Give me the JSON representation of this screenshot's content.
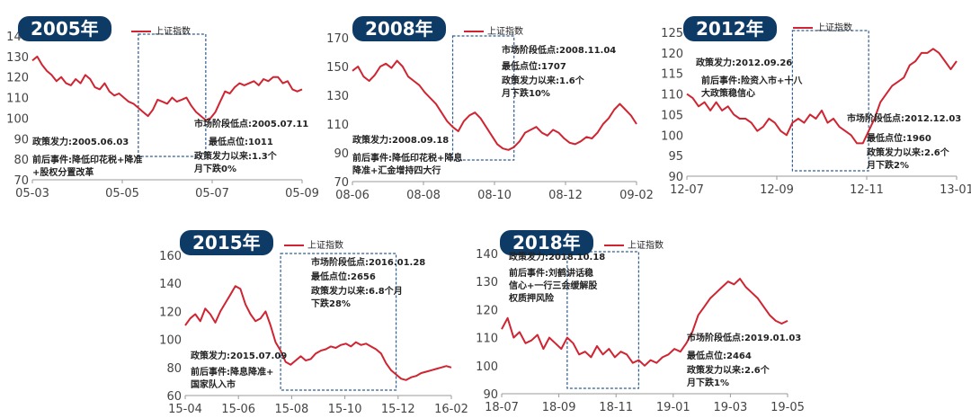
{
  "legend_label": "上证指数",
  "colors": {
    "line": "#cf2431",
    "badge": "#0e3b66",
    "box": "#2f5d93",
    "axis": "#444444"
  },
  "chart_data": [
    {
      "type": "line",
      "badge": "2005年",
      "legend": "上证指数",
      "y_ticks": [
        70,
        80,
        90,
        100,
        110,
        120,
        130,
        140
      ],
      "ylim": [
        70,
        140
      ],
      "x_ticks": [
        "05-03",
        "05-05",
        "05-07",
        "05-09"
      ],
      "series": [
        {
          "values": [
            128,
            130,
            126,
            123,
            121,
            118,
            120,
            117,
            116,
            119,
            117,
            121,
            119,
            115,
            114,
            117,
            113,
            111,
            112,
            110,
            108,
            107,
            105,
            103,
            101,
            104,
            109,
            108,
            107,
            110,
            108,
            109,
            110,
            106,
            103,
            101,
            99,
            100,
            103,
            108,
            113,
            112,
            115,
            117,
            116,
            117,
            118,
            116,
            119,
            118,
            120,
            120,
            117,
            118,
            114,
            113,
            114
          ]
        }
      ],
      "policy_window": [
        22,
        36
      ],
      "annotations": [
        {
          "text": "政策发力:2005.06.03"
        },
        {
          "text": "前后事件:降低印花税+降准\n+股权分置改革"
        },
        {
          "text": "市场阶段低点:2005.07.11"
        },
        {
          "text": "最低点位:1011"
        },
        {
          "text": "政策发力以来:1.3个\n月下跌0%"
        }
      ]
    },
    {
      "type": "line",
      "badge": "2008年",
      "legend": "上证指数",
      "y_ticks": [
        70,
        90,
        110,
        130,
        150,
        170
      ],
      "ylim": [
        70,
        170
      ],
      "x_ticks": [
        "08-06",
        "08-08",
        "08-10",
        "08-12",
        "09-02"
      ],
      "series": [
        {
          "values": [
            147,
            150,
            143,
            140,
            144,
            150,
            152,
            149,
            154,
            150,
            143,
            140,
            137,
            132,
            128,
            124,
            118,
            112,
            108,
            105,
            112,
            116,
            118,
            114,
            108,
            102,
            96,
            93,
            92,
            94,
            98,
            104,
            106,
            108,
            104,
            102,
            106,
            104,
            100,
            97,
            96,
            98,
            101,
            100,
            104,
            110,
            114,
            120,
            124,
            120,
            116,
            110
          ]
        }
      ],
      "policy_window": [
        18,
        29
      ],
      "annotations": [
        {
          "text": "市场阶段低点:2008.11.04"
        },
        {
          "text": "最低点位:1707"
        },
        {
          "text": "政策发力以来:1.6个\n月下跌10%"
        },
        {
          "text": "政策发力:2008.09.18"
        },
        {
          "text": "前后事件:降低印花税+降息\n降准+汇金增持四大行"
        }
      ]
    },
    {
      "type": "line",
      "badge": "2012年",
      "legend": "上证指数",
      "y_ticks": [
        90,
        95,
        100,
        105,
        110,
        115,
        120,
        125
      ],
      "ylim": [
        90,
        125
      ],
      "x_ticks": [
        "12-07",
        "12-09",
        "12-11",
        "13-01"
      ],
      "series": [
        {
          "values": [
            110,
            109,
            107,
            108,
            106,
            108,
            106,
            107,
            105,
            104,
            104,
            103,
            101,
            102,
            104,
            103,
            101,
            100,
            103,
            104,
            103,
            105,
            104,
            106,
            103,
            104,
            102,
            101,
            100,
            98,
            98,
            101,
            104,
            108,
            110,
            112,
            113,
            114,
            117,
            118,
            120,
            120,
            121,
            120,
            118,
            116,
            118
          ]
        }
      ],
      "policy_window": [
        18,
        31
      ],
      "annotations": [
        {
          "text": "政策发力:2012.09.26"
        },
        {
          "text": "前后事件:险资入市+十八\n大政策稳信心"
        },
        {
          "text": "市场阶段低点:2012.12.03"
        },
        {
          "text": "最低点位:1960"
        },
        {
          "text": "政策发力以来:2.6个\n月下跌2%"
        }
      ]
    },
    {
      "type": "line",
      "badge": "2015年",
      "legend": "上证指数",
      "y_ticks": [
        60,
        80,
        100,
        120,
        140,
        160
      ],
      "ylim": [
        60,
        160
      ],
      "x_ticks": [
        "15-04",
        "15-06",
        "15-08",
        "15-10",
        "15-12",
        "16-02"
      ],
      "series": [
        {
          "values": [
            110,
            115,
            118,
            113,
            122,
            118,
            112,
            120,
            126,
            132,
            138,
            136,
            125,
            118,
            113,
            115,
            120,
            110,
            98,
            92,
            84,
            82,
            85,
            88,
            85,
            86,
            90,
            92,
            93,
            95,
            94,
            96,
            97,
            95,
            98,
            96,
            97,
            95,
            93,
            90,
            83,
            78,
            75,
            72,
            71,
            73,
            74,
            76,
            77,
            78,
            79,
            80,
            81,
            80
          ]
        }
      ],
      "policy_window": [
        19,
        42
      ],
      "annotations": [
        {
          "text": "市场阶段低点:2016.01.28"
        },
        {
          "text": "最低点位:2656"
        },
        {
          "text": "政策发力以来:6.8个月\n下跌28%"
        },
        {
          "text": "政策发力:2015.07.09"
        },
        {
          "text": "前后事件:降息降准+\n国家队入市"
        }
      ]
    },
    {
      "type": "line",
      "badge": "2018年",
      "legend": "上证指数",
      "y_ticks": [
        90,
        100,
        110,
        120,
        130,
        140
      ],
      "ylim": [
        90,
        140
      ],
      "x_ticks": [
        "18-07",
        "18-09",
        "18-11",
        "19-01",
        "19-03",
        "19-05"
      ],
      "series": [
        {
          "values": [
            113,
            117,
            110,
            112,
            108,
            109,
            111,
            106,
            110,
            108,
            106,
            110,
            108,
            104,
            105,
            103,
            107,
            104,
            106,
            103,
            105,
            104,
            101,
            102,
            100,
            102,
            101,
            103,
            104,
            106,
            105,
            108,
            112,
            118,
            121,
            124,
            126,
            128,
            130,
            129,
            131,
            128,
            126,
            124,
            121,
            118,
            116,
            115,
            116
          ]
        }
      ],
      "policy_window": [
        11,
        23
      ],
      "annotations": [
        {
          "text": "政策发力:2018.10.18"
        },
        {
          "text": "前后事件:刘鹤讲话稳\n信心+一行三会缓解股\n权质押风险"
        },
        {
          "text": "市场阶段低点:2019.01.03"
        },
        {
          "text": "最低点位:2464"
        },
        {
          "text": "政策发力以来:2.6个\n月下跌1%"
        }
      ]
    }
  ]
}
